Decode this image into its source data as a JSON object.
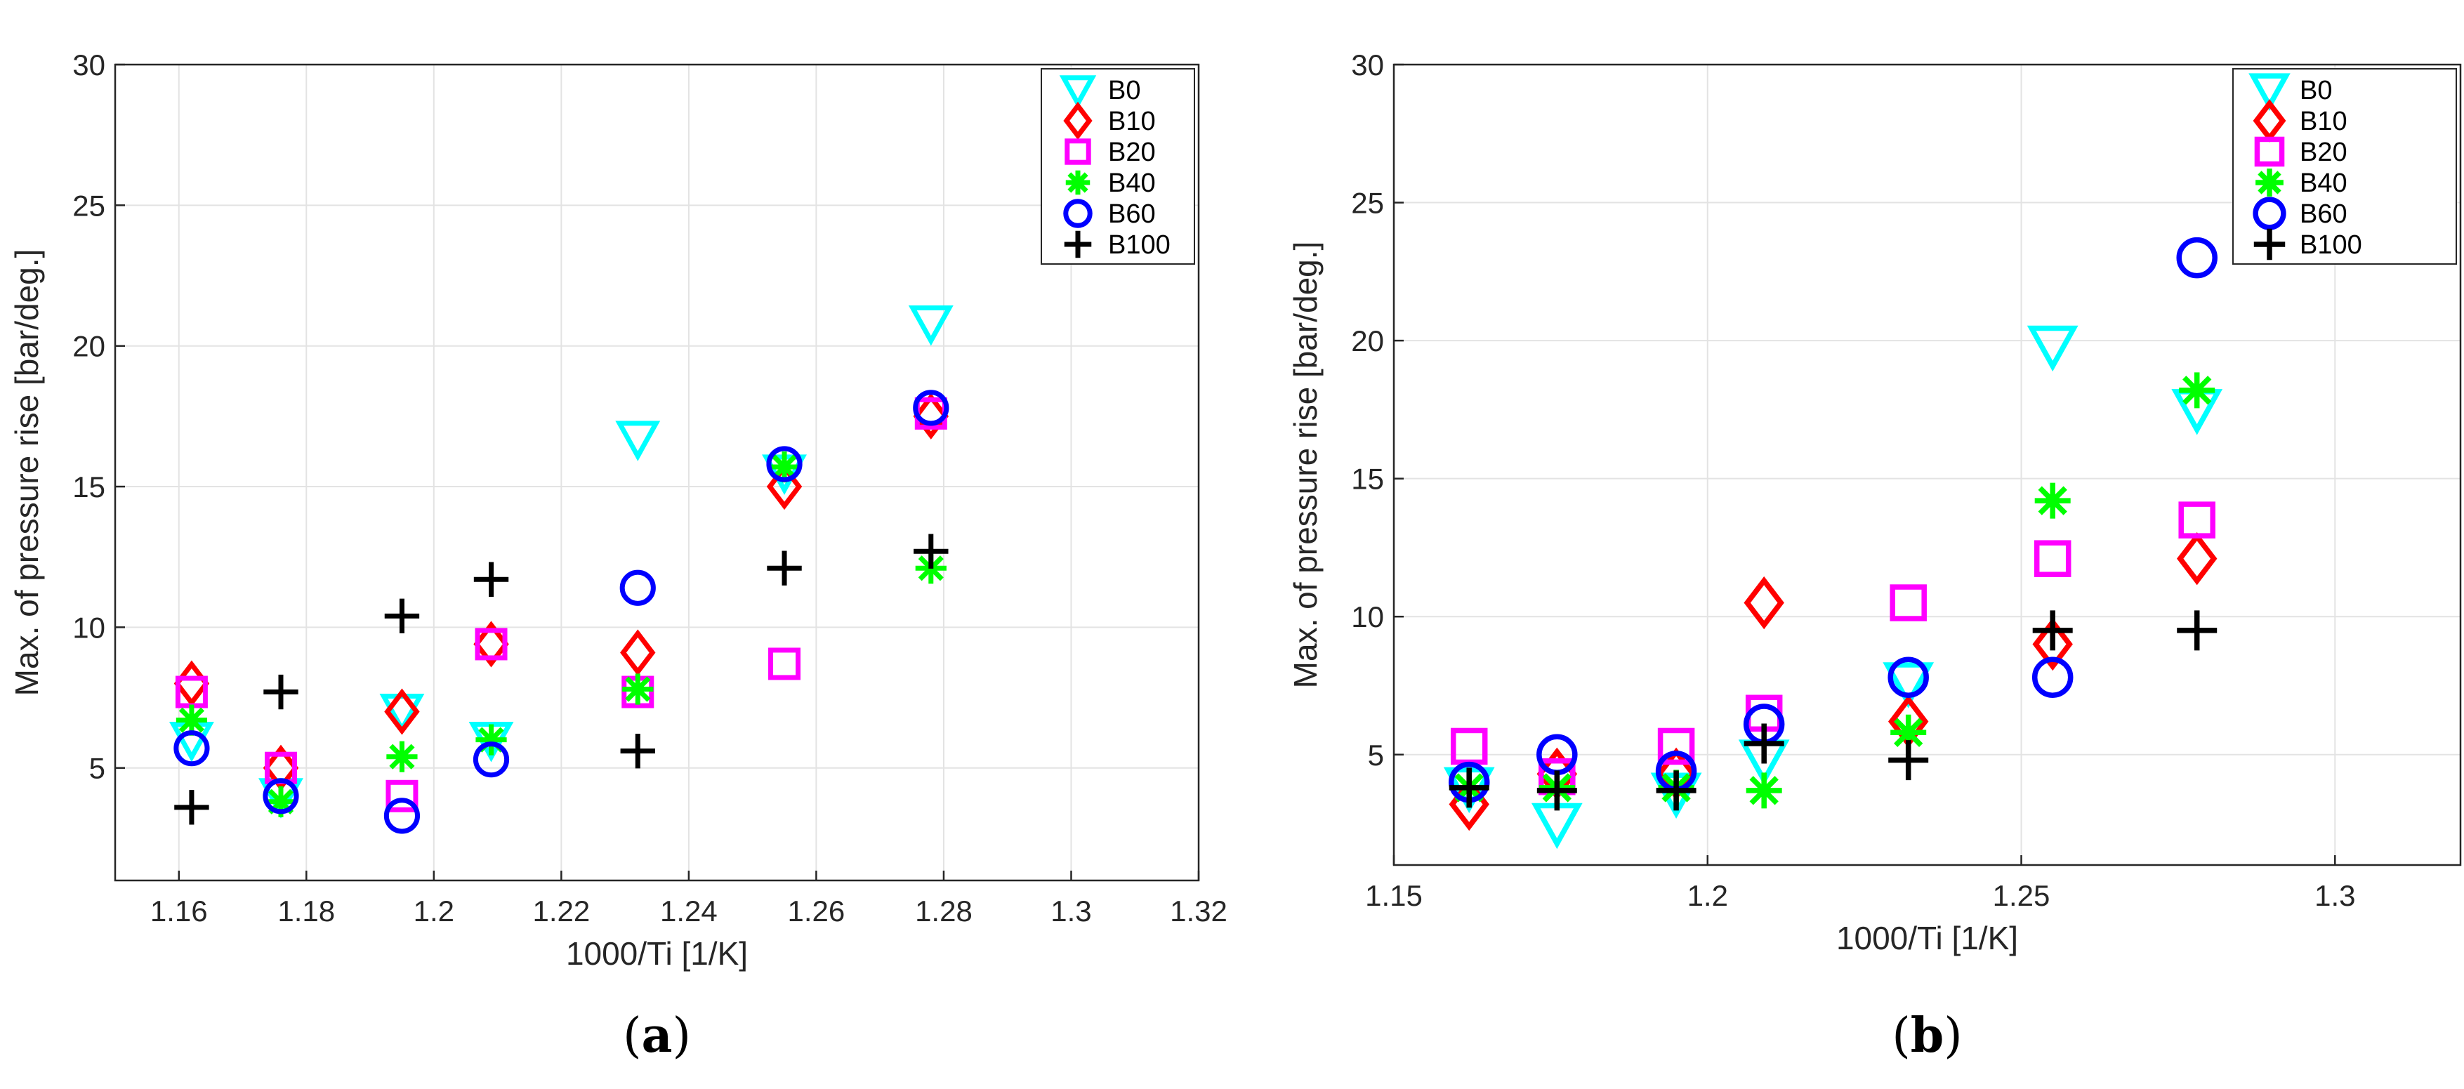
{
  "panels": [
    {
      "label_open": "(",
      "label_letter": "a",
      "label_close": ")"
    },
    {
      "label_open": "(",
      "label_letter": "b",
      "label_close": ")"
    }
  ],
  "series_styles": [
    {
      "name": "B0",
      "marker": "triangle-down",
      "color": "#00ffff"
    },
    {
      "name": "B10",
      "marker": "diamond",
      "color": "#ff0000"
    },
    {
      "name": "B20",
      "marker": "square",
      "color": "#ff00ff"
    },
    {
      "name": "B40",
      "marker": "asterisk",
      "color": "#00ff00"
    },
    {
      "name": "B60",
      "marker": "circle",
      "color": "#0000ff"
    },
    {
      "name": "B100",
      "marker": "plus",
      "color": "#000000"
    }
  ],
  "chart_data": [
    {
      "type": "scatter",
      "panel": "a",
      "title": "",
      "xlabel": "1000/Ti [1/K]",
      "ylabel": "Max. of pressure rise [bar/deg.]",
      "xlim": [
        1.15,
        1.32
      ],
      "ylim": [
        1,
        30
      ],
      "xticks": [
        1.16,
        1.18,
        1.2,
        1.22,
        1.24,
        1.26,
        1.28,
        1.3,
        1.32
      ],
      "xtick_labels": [
        "1.16",
        "1.18",
        "1.2",
        "1.22",
        "1.24",
        "1.26",
        "1.28",
        "1.3",
        "1.32"
      ],
      "yticks": [
        5,
        10,
        15,
        20,
        25,
        30
      ],
      "ytick_labels": [
        "5",
        "10",
        "15",
        "20",
        "25",
        "30"
      ],
      "grid": true,
      "legend_position": "top-right",
      "x": [
        1.162,
        1.176,
        1.195,
        1.209,
        1.232,
        1.255,
        1.278
      ],
      "series": [
        {
          "name": "B0",
          "values": [
            6.0,
            4.0,
            7.0,
            6.0,
            16.7,
            15.5,
            20.8
          ]
        },
        {
          "name": "B10",
          "values": [
            8.0,
            5.0,
            7.0,
            9.4,
            9.1,
            15.0,
            17.5
          ]
        },
        {
          "name": "B20",
          "values": [
            7.7,
            5.0,
            4.0,
            9.4,
            7.7,
            8.7,
            17.6
          ]
        },
        {
          "name": "B40",
          "values": [
            6.7,
            3.8,
            5.4,
            6.0,
            7.8,
            15.7,
            12.1
          ]
        },
        {
          "name": "B60",
          "values": [
            5.7,
            4.0,
            3.3,
            5.3,
            11.4,
            15.8,
            17.8
          ]
        },
        {
          "name": "B100",
          "values": [
            3.6,
            7.7,
            10.4,
            11.7,
            5.6,
            12.1,
            12.7
          ]
        }
      ]
    },
    {
      "type": "scatter",
      "panel": "b",
      "title": "",
      "xlabel": "1000/Ti [1/K]",
      "ylabel": "Max. of pressure rise [bar/deg.]",
      "xlim": [
        1.15,
        1.32
      ],
      "ylim": [
        1,
        30
      ],
      "xticks": [
        1.15,
        1.2,
        1.25,
        1.3
      ],
      "xtick_labels": [
        "1.15",
        "1.2",
        "1.25",
        "1.3"
      ],
      "yticks": [
        5,
        10,
        15,
        20,
        25,
        30
      ],
      "ytick_labels": [
        "5",
        "10",
        "15",
        "20",
        "25",
        "30"
      ],
      "grid": true,
      "legend_position": "top-right",
      "x": [
        1.162,
        1.176,
        1.195,
        1.209,
        1.232,
        1.255,
        1.278
      ],
      "series": [
        {
          "name": "B0",
          "values": [
            3.8,
            2.5,
            3.6,
            4.8,
            7.6,
            19.8,
            17.5
          ]
        },
        {
          "name": "B10",
          "values": [
            3.2,
            4.3,
            4.3,
            10.5,
            6.2,
            9.0,
            12.1
          ]
        },
        {
          "name": "B20",
          "values": [
            5.3,
            4.2,
            5.3,
            6.5,
            10.5,
            12.1,
            13.5
          ]
        },
        {
          "name": "B40",
          "values": [
            3.8,
            3.8,
            3.8,
            3.7,
            5.8,
            14.2,
            18.2
          ]
        },
        {
          "name": "B60",
          "values": [
            4.0,
            5.0,
            4.4,
            6.1,
            7.8,
            7.8,
            23.0
          ]
        },
        {
          "name": "B100",
          "values": [
            3.8,
            3.7,
            3.7,
            5.4,
            4.8,
            9.5,
            9.5
          ]
        }
      ]
    }
  ]
}
